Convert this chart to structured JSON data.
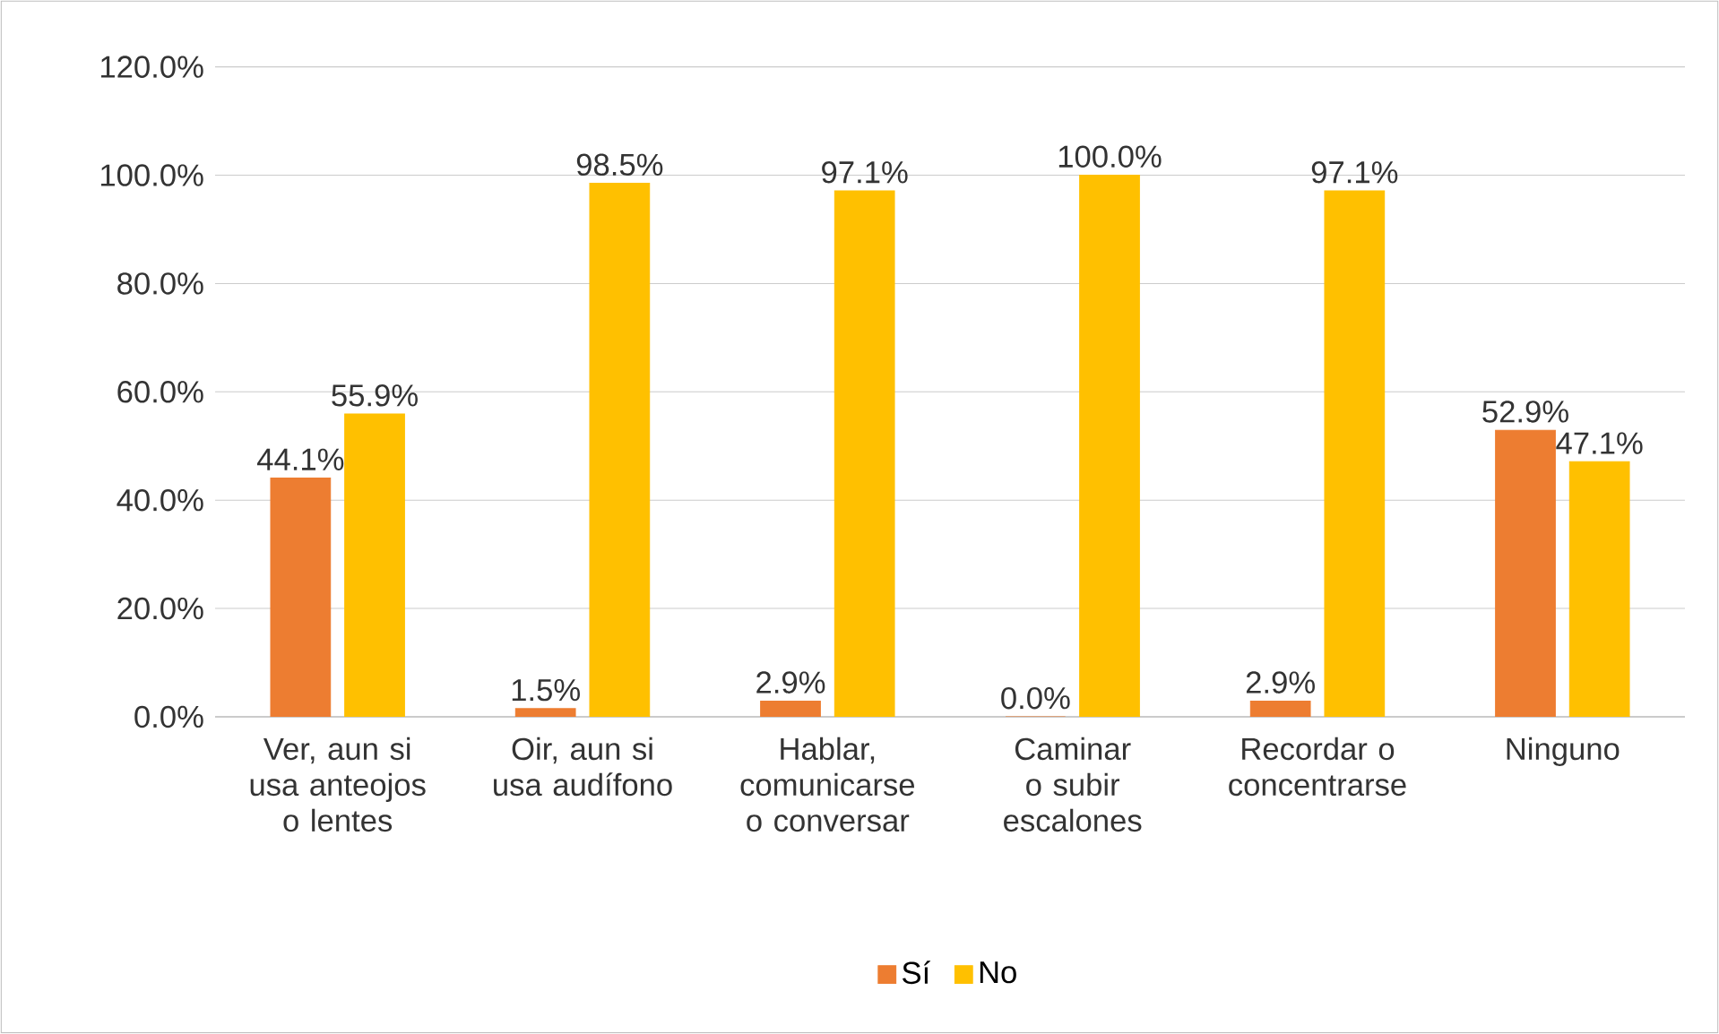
{
  "chart_data": {
    "type": "bar",
    "categories": [
      "Ver, aun si usa anteojos o lentes",
      "Oir, aun si usa audífono",
      "Hablar, comunicarse o conversar",
      "Caminar o subir escalones",
      "Recordar o concentrarse",
      "Ninguno"
    ],
    "series": [
      {
        "name": "Sí",
        "color": "#ed7d31",
        "values": [
          44.1,
          1.5,
          2.9,
          0.0,
          2.9,
          52.9
        ],
        "value_labels": [
          "44.1%",
          "1.5%",
          "2.9%",
          "0.0%",
          "2.9%",
          "52.9%"
        ]
      },
      {
        "name": "No",
        "color": "#ffc000",
        "values": [
          55.9,
          98.5,
          97.1,
          100.0,
          97.1,
          47.1
        ],
        "value_labels": [
          "55.9%",
          "98.5%",
          "97.1%",
          "100.0%",
          "97.1%",
          "47.1%"
        ]
      }
    ],
    "ylim": [
      0,
      120
    ],
    "yticks": [
      {
        "value": 0,
        "label": "0.0%"
      },
      {
        "value": 20,
        "label": "20.0%"
      },
      {
        "value": 40,
        "label": "40.0%"
      },
      {
        "value": 60,
        "label": "60.0%"
      },
      {
        "value": 80,
        "label": "80.0%"
      },
      {
        "value": 100,
        "label": "100.0%"
      },
      {
        "value": 120,
        "label": "120.0%"
      }
    ],
    "grid": "y",
    "legend": "bottom"
  }
}
